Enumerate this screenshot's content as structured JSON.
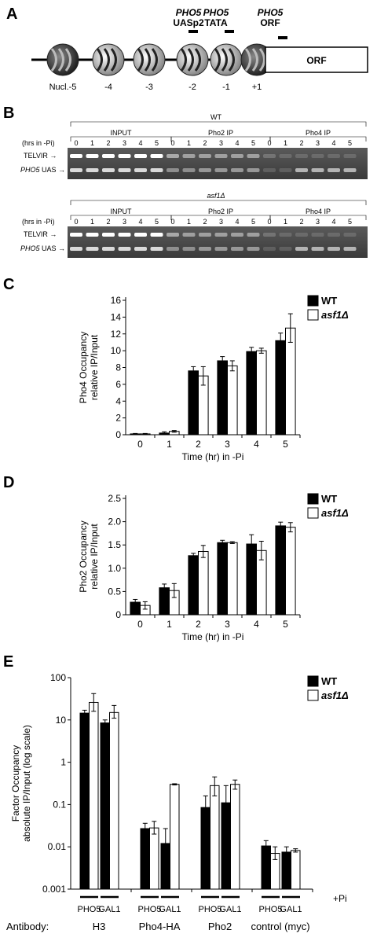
{
  "panels": {
    "A": {
      "label": "A",
      "markers": [
        {
          "gene": "PHO5",
          "site": "UASp2"
        },
        {
          "gene": "PHO5",
          "site": "TATA"
        },
        {
          "gene": "PHO5",
          "site": "ORF"
        }
      ],
      "orf_box": "ORF",
      "nucleosome_labels": [
        "Nucl.-5",
        "-4",
        "-3",
        "-2",
        "-1",
        "+1"
      ]
    },
    "B": {
      "label": "B",
      "hrs_label": "(hrs in -Pi)",
      "blots": [
        {
          "strain": "WT",
          "groups": [
            "INPUT",
            "Pho2 IP",
            "Pho4 IP"
          ],
          "lanes": [
            "0",
            "1",
            "2",
            "3",
            "4",
            "5"
          ],
          "bands": [
            "TELVIR",
            "PHO5 UAS"
          ]
        },
        {
          "strain": "asf1Δ",
          "groups": [
            "INPUT",
            "Pho2 IP",
            "Pho4 IP"
          ],
          "lanes": [
            "0",
            "1",
            "2",
            "3",
            "4",
            "5"
          ],
          "bands": [
            "TELVIR",
            "PHO5 UAS"
          ]
        }
      ]
    }
  },
  "chart_data": [
    {
      "panel": "C",
      "type": "bar",
      "categories": [
        "0",
        "1",
        "2",
        "3",
        "4",
        "5"
      ],
      "series": [
        {
          "name": "WT",
          "color": "#000000",
          "values": [
            0.1,
            0.2,
            7.6,
            8.8,
            9.9,
            11.2
          ],
          "errors": [
            0.05,
            0.15,
            0.5,
            0.5,
            0.5,
            0.9
          ]
        },
        {
          "name": "asf1Δ",
          "color": "#ffffff",
          "values": [
            0.1,
            0.4,
            7.0,
            8.2,
            10.0,
            12.7
          ],
          "errors": [
            0.05,
            0.1,
            1.1,
            0.6,
            0.3,
            1.7
          ]
        }
      ],
      "xlabel": "Time (hr) in -Pi",
      "ylabel": [
        "Pho4 Occupancy",
        "relative IP/Input"
      ],
      "ylim": [
        0,
        16
      ],
      "yticks": [
        "0",
        "2",
        "4",
        "6",
        "8",
        "10",
        "12",
        "14",
        "16"
      ],
      "legend": "top-right"
    },
    {
      "panel": "D",
      "type": "bar",
      "categories": [
        "0",
        "1",
        "2",
        "3",
        "4",
        "5"
      ],
      "series": [
        {
          "name": "WT",
          "color": "#000000",
          "values": [
            0.27,
            0.58,
            1.27,
            1.55,
            1.52,
            1.91
          ],
          "errors": [
            0.06,
            0.08,
            0.05,
            0.05,
            0.2,
            0.08
          ]
        },
        {
          "name": "asf1Δ",
          "color": "#ffffff",
          "values": [
            0.2,
            0.52,
            1.36,
            1.55,
            1.38,
            1.88
          ],
          "errors": [
            0.08,
            0.15,
            0.13,
            0.02,
            0.2,
            0.1
          ]
        }
      ],
      "xlabel": "Time (hr) in -Pi",
      "ylabel": [
        "Pho2 Occupancy",
        "relative IP/Input"
      ],
      "ylim": [
        0,
        2.5
      ],
      "yticks": [
        "0",
        "0.5",
        "1.0",
        "1.5",
        "2.0",
        "2.5"
      ],
      "legend": "top-right"
    },
    {
      "panel": "E",
      "type": "bar",
      "scale": "log",
      "groups": [
        {
          "antibody": "H3",
          "genes": [
            "PHO5",
            "GAL1"
          ]
        },
        {
          "antibody": "Pho4-HA",
          "genes": [
            "PHO5",
            "GAL1"
          ]
        },
        {
          "antibody": "Pho2",
          "genes": [
            "PHO5",
            "GAL1"
          ]
        },
        {
          "antibody": "control (myc)",
          "genes": [
            "PHO5",
            "GAL1"
          ]
        }
      ],
      "condition_order": [
        "-Pi",
        "+Pi"
      ],
      "series": [
        {
          "name": "WT",
          "color": "#000000",
          "values": [
            14.5,
            26,
            8.5,
            15,
            0.027,
            0.028,
            0.012,
            0.3,
            0.085,
            0.28,
            0.11,
            0.3,
            0.0105,
            0.007,
            0.0075,
            0.0082
          ]
        },
        {
          "name": "asf1Δ",
          "color": "#ffffff"
        }
      ],
      "bar_fills": [
        "#000000",
        "#ffffff",
        "#000000",
        "#ffffff",
        "#000000",
        "#ffffff",
        "#000000",
        "#ffffff",
        "#000000",
        "#ffffff",
        "#000000",
        "#ffffff",
        "#000000",
        "#ffffff",
        "#000000",
        "#ffffff"
      ],
      "err_hi": [
        17,
        42,
        10,
        22,
        0.036,
        0.04,
        0.027,
        0.31,
        0.16,
        0.45,
        0.28,
        0.38,
        0.014,
        0.01,
        0.01,
        0.009
      ],
      "err_lo": [
        12.5,
        16,
        7,
        11,
        0.02,
        0.02,
        0.006,
        0.29,
        0.05,
        0.16,
        0.05,
        0.23,
        0.008,
        0.005,
        0.006,
        0.0075
      ],
      "ylabel": [
        "Factor Occupancy",
        "absolute IP/Input (log scale)"
      ],
      "ylim": [
        0.001,
        100
      ],
      "yticks": [
        "100",
        "10",
        "1",
        "0.1",
        "0.01",
        "0.001"
      ],
      "gene_labels": [
        "PHO5",
        "GAL1",
        "PHO5",
        "GAL1",
        "PHO5",
        "GAL1",
        "PHO5",
        "GAL1"
      ],
      "antibody_prefix": "Antibody:",
      "antibody_labels": [
        "H3",
        "Pho4-HA",
        "Pho2",
        "control (myc)"
      ],
      "pi_label": "+Pi",
      "legend": "top-right"
    }
  ]
}
